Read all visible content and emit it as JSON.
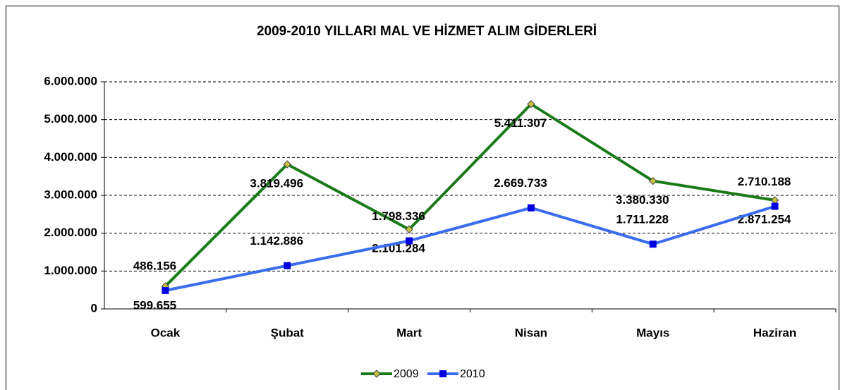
{
  "chart_data": {
    "type": "line",
    "title": "2009-2010 YILLARI MAL VE HİZMET ALIM GİDERLERİ",
    "categories": [
      "Ocak",
      "Şubat",
      "Mart",
      "Nisan",
      "Mayıs",
      "Haziran"
    ],
    "series": [
      {
        "name": "2009",
        "color": "#1a7a1a",
        "marker": "diamond",
        "values": [
          599655,
          3819496,
          2101284,
          5411307,
          3380330,
          2871254
        ],
        "value_labels": [
          "599.655",
          "3.819.496",
          "2.101.284",
          "5.411.307",
          "3.380.330",
          "2.871.254"
        ]
      },
      {
        "name": "2010",
        "color": "#3b6cf0",
        "marker": "square",
        "values": [
          486156,
          1142886,
          1798336,
          2669733,
          1711228,
          2710188
        ],
        "value_labels": [
          "486.156",
          "1.142.886",
          "1.798.336",
          "2.669.733",
          "1.711.228",
          "2.710.188"
        ]
      }
    ],
    "ylim": [
      0,
      6000000
    ],
    "yticks": [
      0,
      {
        "value": 1000000,
        "label": "1.000.000"
      },
      {
        "value": 2000000,
        "label": "2.000.000"
      },
      {
        "value": 3000000,
        "label": "3.000.000"
      },
      {
        "value": 4000000,
        "label": "4.000.000"
      },
      {
        "value": 5000000,
        "label": "5.000.000"
      },
      {
        "value": 6000000,
        "label": "6.000.000"
      }
    ],
    "grid": true,
    "legend": "bottom"
  }
}
